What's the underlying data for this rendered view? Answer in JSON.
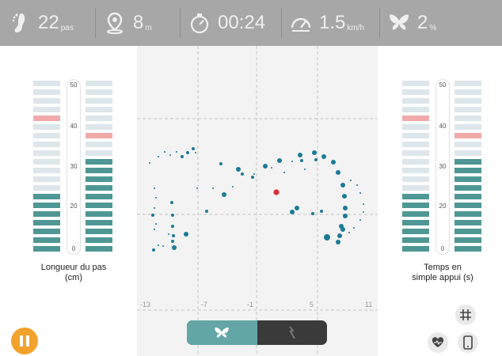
{
  "stats": {
    "steps": {
      "value": "22",
      "unit": "pas",
      "icon": "foot-icon"
    },
    "distance": {
      "value": "8",
      "unit": "m",
      "icon": "location-pin-icon"
    },
    "time": {
      "value": "00:24",
      "unit": "",
      "icon": "stopwatch-icon"
    },
    "speed": {
      "value": "1.5",
      "unit": "km/h",
      "icon": "speedometer-icon"
    },
    "asymmetry": {
      "value": "2",
      "unit": "%",
      "icon": "butterfly-icon"
    }
  },
  "left_panel": {
    "label_line1": "Longueur du pas",
    "label_line2": "(cm)",
    "ticks": [
      "50",
      "40",
      "30",
      "20",
      "0"
    ],
    "left_bar_filled_segments": 7,
    "right_bar_filled_segments": 11,
    "left_bar_marker_segment": 15,
    "right_bar_marker_segment": 13,
    "total_segments": 20
  },
  "right_panel": {
    "label_line1": "Temps en",
    "label_line2": "simple appui (s)",
    "ticks": [
      "50",
      "40",
      "30",
      "20",
      "0"
    ],
    "left_bar_filled_segments": 7,
    "right_bar_filled_segments": 11,
    "left_bar_marker_segment": 15,
    "right_bar_marker_segment": 13,
    "total_segments": 20
  },
  "plot": {
    "y_ticks": [
      "66",
      "57",
      "48"
    ],
    "x_ticks": [
      "-13",
      "-7",
      "-1",
      "5",
      "11"
    ],
    "colors": {
      "dot": "#1d7a96",
      "current": "#d9303a",
      "grid": "#c4c4c4",
      "bg": "#f3f3f3"
    }
  },
  "controls": {
    "pause": "pause-icon",
    "view_toggle": [
      "butterfly-view",
      "footprint-view"
    ],
    "grid_button": "grid-icon",
    "heart_button": "heart-rate-icon",
    "phone_button": "phone-icon"
  },
  "colors": {
    "topbar": "#a7a7a7",
    "bar_empty": "#dde6ea",
    "bar_filled": "#4f9794",
    "bar_marker": "#f1aaaa",
    "accent_orange": "#f3a22c"
  }
}
